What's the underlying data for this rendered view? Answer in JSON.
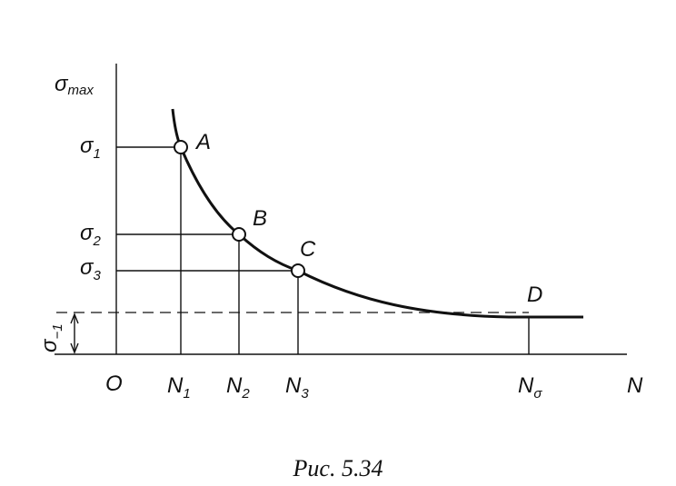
{
  "axes": {
    "y_label": {
      "base": "σ",
      "sub": "max"
    },
    "x_label": "N",
    "origin": "O"
  },
  "y_levels": [
    {
      "base": "σ",
      "sub": "1"
    },
    {
      "base": "σ",
      "sub": "2"
    },
    {
      "base": "σ",
      "sub": "3"
    }
  ],
  "endurance_limit": {
    "base": "σ",
    "sub": "−1"
  },
  "x_levels": [
    {
      "base": "N",
      "sub": "1"
    },
    {
      "base": "N",
      "sub": "2"
    },
    {
      "base": "N",
      "sub": "3"
    },
    {
      "base": "N",
      "sub": "σ"
    }
  ],
  "points": [
    "A",
    "B",
    "C",
    "D"
  ],
  "caption": "Рис. 5.34"
}
